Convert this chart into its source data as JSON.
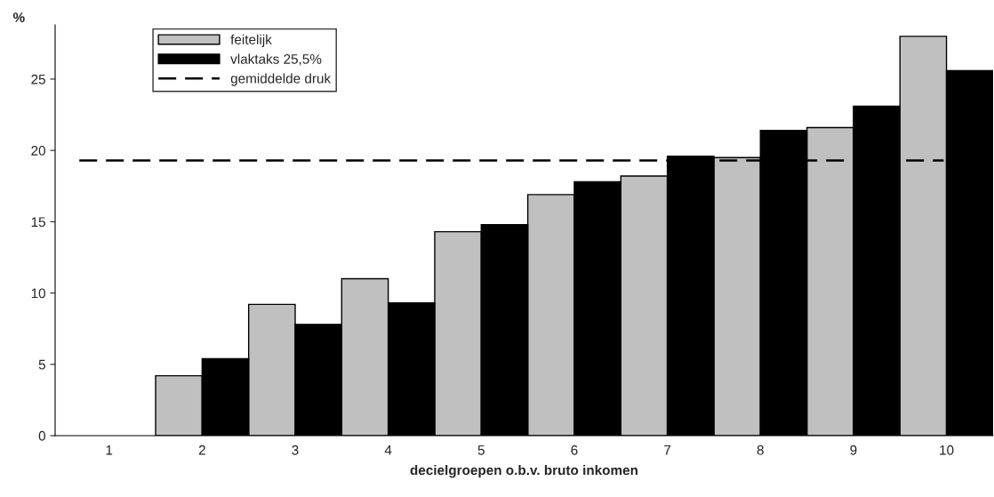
{
  "chart_data": {
    "type": "bar",
    "ylabel": "%",
    "xlabel": "decielgroepen o.b.v. bruto inkomen",
    "categories": [
      "1",
      "2",
      "3",
      "4",
      "5",
      "6",
      "7",
      "8",
      "9",
      "10"
    ],
    "series": [
      {
        "name": "feitelijk",
        "color": "#c0c0c0",
        "values": [
          null,
          4.2,
          9.2,
          11.0,
          14.3,
          16.9,
          18.2,
          19.5,
          21.6,
          28.0
        ]
      },
      {
        "name": "vlaktaks 25,5%",
        "color": "#000000",
        "values": [
          null,
          5.4,
          7.8,
          9.3,
          14.8,
          17.8,
          19.6,
          21.4,
          23.1,
          25.6
        ]
      }
    ],
    "ref_lines": [
      {
        "axis": "y",
        "value": 19.3,
        "label": "gemiddelde druk",
        "color": "#000000",
        "line_style": "dashed"
      }
    ],
    "ylim": [
      0,
      28.8
    ],
    "yticks": [
      0,
      5,
      10,
      15,
      20,
      25
    ],
    "grid": false,
    "legend": "top left"
  }
}
